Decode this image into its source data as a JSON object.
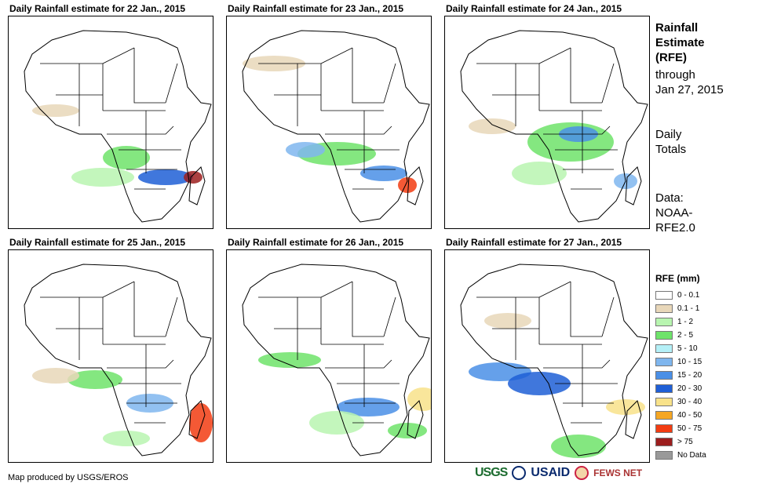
{
  "panels": [
    {
      "title": "Daily Rainfall estimate for 22 Jan., 2015"
    },
    {
      "title": "Daily Rainfall estimate for 23 Jan., 2015"
    },
    {
      "title": "Daily Rainfall estimate for 24 Jan., 2015"
    },
    {
      "title": "Daily Rainfall estimate for 25 Jan., 2015"
    },
    {
      "title": "Daily Rainfall estimate for 26 Jan., 2015"
    },
    {
      "title": "Daily Rainfall estimate for 27 Jan., 2015"
    }
  ],
  "side": {
    "title_line1": "Rainfall",
    "title_line2": "Estimate",
    "title_line3": "(RFE)",
    "through": "through",
    "date": "Jan 27, 2015",
    "daily": "Daily",
    "totals": "Totals",
    "data_label": "Data:",
    "source1": "NOAA-",
    "source2": "RFE2.0"
  },
  "legend": {
    "title": "RFE (mm)",
    "items": [
      {
        "label": "0 - 0.1",
        "color": "#ffffff"
      },
      {
        "label": "0.1 - 1",
        "color": "#e8d7b9"
      },
      {
        "label": "1 - 2",
        "color": "#b8f5b0"
      },
      {
        "label": "2 - 5",
        "color": "#6ee36a"
      },
      {
        "label": "5 - 10",
        "color": "#b4f0f7"
      },
      {
        "label": "10 - 15",
        "color": "#7fb6ee"
      },
      {
        "label": "15 - 20",
        "color": "#4a8fe6"
      },
      {
        "label": "20 - 30",
        "color": "#1f5fd6"
      },
      {
        "label": "30 - 40",
        "color": "#f8e28a"
      },
      {
        "label": "40 - 50",
        "color": "#f5a623"
      },
      {
        "label": "50 - 75",
        "color": "#f23c12"
      },
      {
        "label": "> 75",
        "color": "#9c1e1e"
      },
      {
        "label": "No Data",
        "color": "#999999"
      }
    ]
  },
  "footer": {
    "credit": "Map produced by USGS/EROS",
    "logo_usgs": "USGS",
    "logo_usaid": "USAID",
    "logo_fews": "FEWS NET"
  }
}
